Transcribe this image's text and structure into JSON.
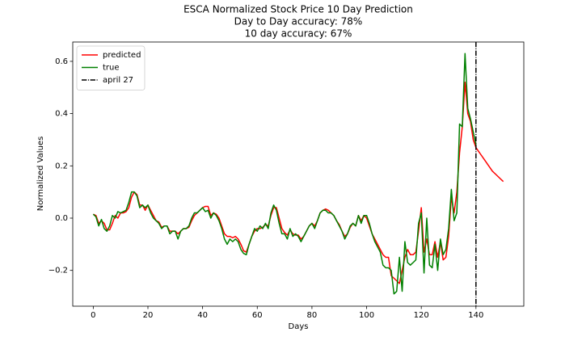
{
  "chart_data": {
    "type": "line",
    "title": [
      "ESCA Normalized Stock Price 10 Day Prediction",
      "Day to Day accuracy: 78%",
      "10 day accuracy: 67%"
    ],
    "x_label": "Days",
    "y_label": "Normalized Values",
    "x": [
      0,
      1,
      2,
      3,
      4,
      5,
      6,
      7,
      8,
      9,
      10,
      11,
      12,
      13,
      14,
      15,
      16,
      17,
      18,
      19,
      20,
      21,
      22,
      23,
      24,
      25,
      26,
      27,
      28,
      29,
      30,
      31,
      32,
      33,
      34,
      35,
      36,
      37,
      38,
      39,
      40,
      41,
      42,
      43,
      44,
      45,
      46,
      47,
      48,
      49,
      50,
      51,
      52,
      53,
      54,
      55,
      56,
      57,
      58,
      59,
      60,
      61,
      62,
      63,
      64,
      65,
      66,
      67,
      68,
      69,
      70,
      71,
      72,
      73,
      74,
      75,
      76,
      77,
      78,
      79,
      80,
      81,
      82,
      83,
      84,
      85,
      86,
      87,
      88,
      89,
      90,
      91,
      92,
      93,
      94,
      95,
      96,
      97,
      98,
      99,
      100,
      101,
      102,
      103,
      104,
      105,
      106,
      107,
      108,
      109,
      110,
      111,
      112,
      113,
      114,
      115,
      116,
      117,
      118,
      119,
      120,
      121,
      122,
      123,
      124,
      125,
      126,
      127,
      128,
      129,
      130,
      131,
      132,
      133,
      134,
      135,
      136,
      137,
      138,
      139,
      140,
      141,
      142,
      143,
      144,
      145,
      146,
      147,
      148,
      149,
      150
    ],
    "series": [
      {
        "name": "predicted",
        "color": "#ff0000",
        "values": [
          0.015,
          0.01,
          -0.02,
          -0.01,
          -0.02,
          -0.045,
          -0.045,
          -0.02,
          0.01,
          0.0,
          0.02,
          0.02,
          0.025,
          0.04,
          0.08,
          0.1,
          0.09,
          0.05,
          0.05,
          0.03,
          0.05,
          0.03,
          0.01,
          -0.01,
          -0.015,
          -0.035,
          -0.03,
          -0.03,
          -0.05,
          -0.05,
          -0.05,
          -0.06,
          -0.05,
          -0.04,
          -0.04,
          -0.035,
          -0.01,
          0.01,
          0.02,
          0.03,
          0.04,
          0.045,
          0.045,
          0.01,
          0.02,
          0.015,
          0.0,
          -0.03,
          -0.06,
          -0.07,
          -0.07,
          -0.075,
          -0.07,
          -0.08,
          -0.1,
          -0.125,
          -0.13,
          -0.1,
          -0.07,
          -0.05,
          -0.04,
          -0.04,
          -0.035,
          -0.025,
          -0.03,
          0.01,
          0.04,
          0.04,
          0.0,
          -0.04,
          -0.055,
          -0.065,
          -0.045,
          -0.06,
          -0.065,
          -0.065,
          -0.08,
          -0.07,
          -0.05,
          -0.03,
          -0.02,
          -0.03,
          -0.01,
          0.02,
          0.03,
          0.035,
          0.03,
          0.02,
          0.01,
          -0.01,
          -0.025,
          -0.05,
          -0.07,
          -0.06,
          -0.035,
          -0.02,
          -0.03,
          0.01,
          -0.01,
          0.01,
          0.0,
          -0.03,
          -0.06,
          -0.08,
          -0.1,
          -0.12,
          -0.14,
          -0.15,
          -0.15,
          -0.22,
          -0.23,
          -0.24,
          -0.25,
          -0.2,
          -0.15,
          -0.12,
          -0.14,
          -0.14,
          -0.13,
          -0.05,
          0.04,
          -0.13,
          -0.08,
          -0.14,
          -0.14,
          -0.09,
          -0.15,
          -0.09,
          -0.16,
          -0.15,
          -0.07,
          0.08,
          0.02,
          0.1,
          0.25,
          0.35,
          0.52,
          0.4,
          0.37,
          0.3,
          0.27,
          0.255,
          0.24,
          0.225,
          0.21,
          0.195,
          0.18,
          0.17,
          0.16,
          0.15,
          0.14
        ]
      },
      {
        "name": "true",
        "color": "#008000",
        "values": [
          0.015,
          0.005,
          -0.03,
          -0.005,
          -0.04,
          -0.05,
          -0.03,
          0.01,
          0.0,
          0.025,
          0.02,
          0.025,
          0.03,
          0.06,
          0.1,
          0.1,
          0.085,
          0.04,
          0.05,
          0.04,
          0.05,
          0.02,
          0.0,
          -0.01,
          -0.02,
          -0.04,
          -0.03,
          -0.03,
          -0.06,
          -0.05,
          -0.05,
          -0.08,
          -0.05,
          -0.04,
          -0.04,
          -0.03,
          0.0,
          0.02,
          0.02,
          0.03,
          0.04,
          0.025,
          0.03,
          0.0,
          0.02,
          0.01,
          -0.01,
          -0.04,
          -0.08,
          -0.1,
          -0.08,
          -0.09,
          -0.08,
          -0.09,
          -0.12,
          -0.135,
          -0.14,
          -0.1,
          -0.07,
          -0.04,
          -0.05,
          -0.03,
          -0.04,
          -0.02,
          -0.04,
          0.02,
          0.05,
          0.03,
          -0.02,
          -0.06,
          -0.06,
          -0.08,
          -0.04,
          -0.07,
          -0.06,
          -0.07,
          -0.09,
          -0.07,
          -0.05,
          -0.03,
          -0.02,
          -0.04,
          -0.01,
          0.02,
          0.03,
          0.03,
          0.02,
          0.02,
          0.01,
          -0.01,
          -0.03,
          -0.05,
          -0.08,
          -0.06,
          -0.03,
          -0.02,
          -0.03,
          0.01,
          -0.02,
          0.01,
          0.01,
          -0.02,
          -0.06,
          -0.09,
          -0.11,
          -0.13,
          -0.18,
          -0.19,
          -0.19,
          -0.2,
          -0.29,
          -0.28,
          -0.15,
          -0.28,
          -0.09,
          -0.17,
          -0.18,
          -0.17,
          -0.16,
          -0.02,
          0.02,
          -0.21,
          0.0,
          -0.18,
          -0.19,
          -0.1,
          -0.2,
          -0.08,
          -0.14,
          -0.12,
          -0.04,
          0.11,
          -0.01,
          0.02,
          0.36,
          0.35,
          0.63,
          0.42,
          0.38,
          0.33,
          0.28,
          null,
          null,
          null,
          null,
          null,
          null,
          null,
          null,
          null,
          null
        ]
      }
    ],
    "vline": {
      "x": 140,
      "name": "april 27",
      "color": "#000000",
      "style": "dashdot"
    },
    "xlim": [
      -7.5,
      157.5
    ],
    "ylim": [
      -0.337,
      0.674
    ],
    "xticks": [
      0,
      20,
      40,
      60,
      80,
      100,
      120,
      140
    ],
    "yticks": [
      {
        "value": -0.2,
        "label": "−0.2"
      },
      {
        "value": 0.0,
        "label": "0.0"
      },
      {
        "value": 0.2,
        "label": "0.2"
      },
      {
        "value": 0.4,
        "label": "0.4"
      },
      {
        "value": 0.6,
        "label": "0.6"
      }
    ],
    "legend": "upper left",
    "grid": false
  }
}
